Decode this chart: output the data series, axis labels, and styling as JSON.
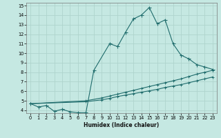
{
  "xlabel": "Humidex (Indice chaleur)",
  "ylabel": "",
  "xlim": [
    -0.5,
    23.5
  ],
  "ylim": [
    3.7,
    15.3
  ],
  "xticks": [
    0,
    1,
    2,
    3,
    4,
    5,
    6,
    7,
    8,
    9,
    10,
    11,
    12,
    13,
    14,
    15,
    16,
    17,
    18,
    19,
    20,
    21,
    22,
    23
  ],
  "yticks": [
    4,
    5,
    6,
    7,
    8,
    9,
    10,
    11,
    12,
    13,
    14,
    15
  ],
  "bg_color": "#c5e8e2",
  "grid_color": "#afd4cd",
  "line_color": "#1e6b6b",
  "line1_x": [
    0,
    1,
    2,
    3,
    4,
    5,
    6,
    7,
    8,
    10,
    11,
    12,
    13,
    14,
    15,
    16,
    17,
    18,
    19,
    20,
    21,
    22,
    23
  ],
  "line1_y": [
    4.7,
    4.35,
    4.5,
    3.9,
    4.1,
    3.85,
    3.75,
    3.75,
    8.2,
    11.0,
    10.7,
    12.2,
    13.6,
    14.0,
    14.8,
    13.1,
    13.5,
    11.0,
    9.8,
    9.4,
    8.8,
    8.55,
    8.3
  ],
  "line2_x": [
    0,
    7,
    9,
    10,
    11,
    12,
    13,
    14,
    15,
    16,
    17,
    18,
    19,
    20,
    21,
    22,
    23
  ],
  "line2_y": [
    4.7,
    5.0,
    5.3,
    5.5,
    5.7,
    5.9,
    6.1,
    6.3,
    6.5,
    6.7,
    6.9,
    7.1,
    7.3,
    7.55,
    7.8,
    8.0,
    8.2
  ],
  "line3_x": [
    0,
    7,
    9,
    10,
    11,
    12,
    13,
    14,
    15,
    16,
    17,
    18,
    19,
    20,
    21,
    22,
    23
  ],
  "line3_y": [
    4.7,
    4.9,
    5.1,
    5.25,
    5.45,
    5.6,
    5.75,
    5.9,
    6.05,
    6.2,
    6.4,
    6.55,
    6.7,
    6.9,
    7.1,
    7.3,
    7.5
  ],
  "figsize": [
    3.2,
    2.0
  ],
  "dpi": 100
}
